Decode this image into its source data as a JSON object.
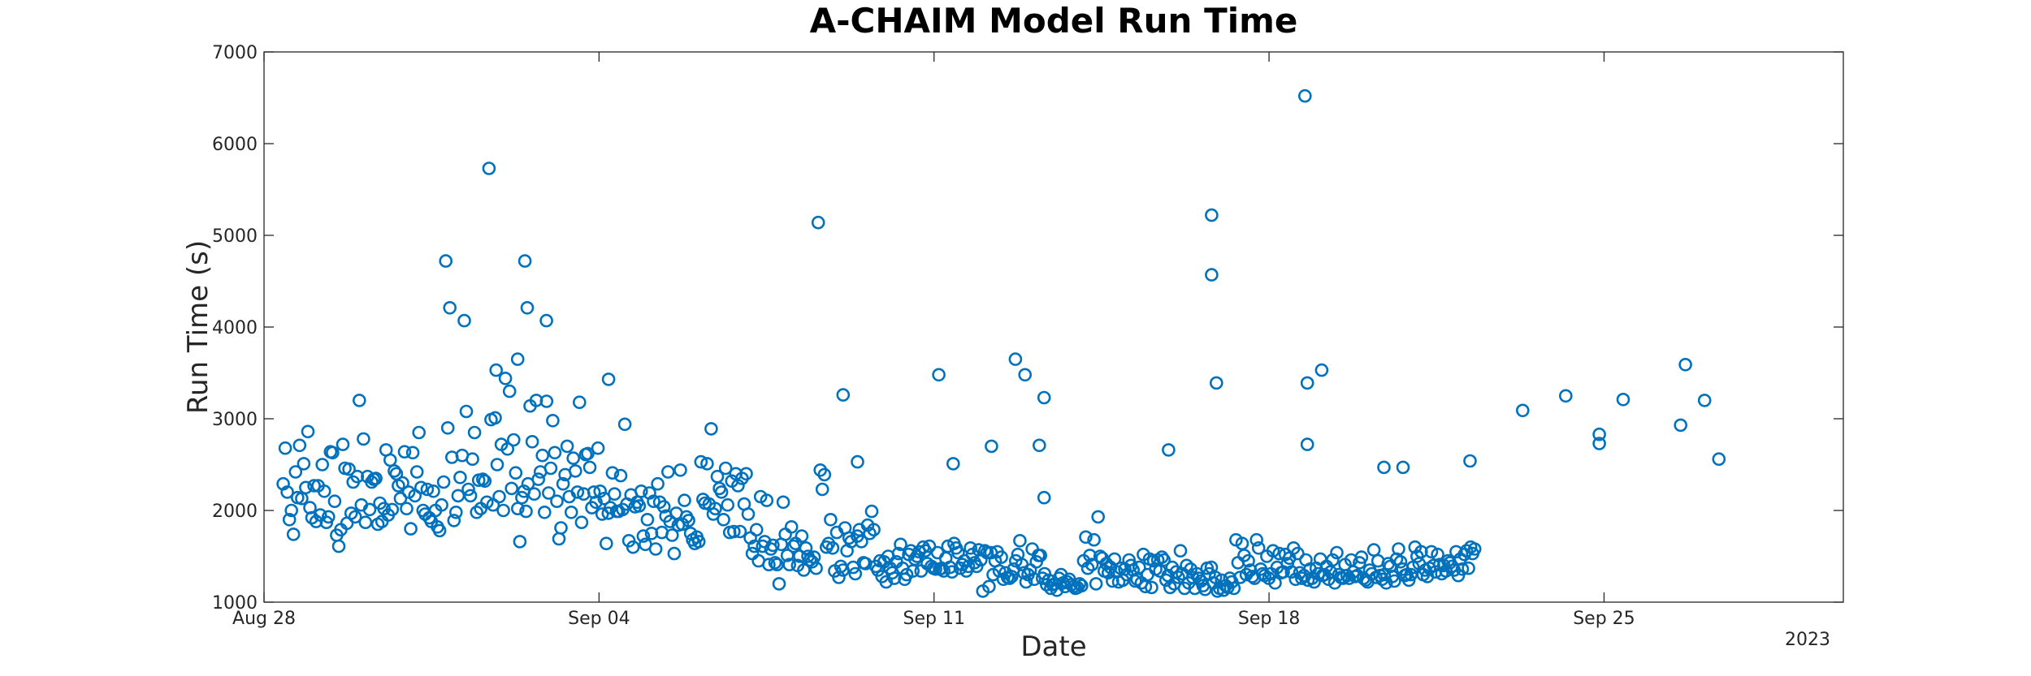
{
  "chart_data": {
    "type": "scatter",
    "title": "A-CHAIM Model Run Time",
    "xlabel": "Date",
    "ylabel": "Run Time (s)",
    "year_label": "2023",
    "ylim": [
      1000,
      7000
    ],
    "yticks": [
      1000,
      2000,
      3000,
      4000,
      5000,
      6000,
      7000
    ],
    "xlim_days": [
      0,
      33
    ],
    "xticks": [
      {
        "day": 0,
        "label": "Aug 28"
      },
      {
        "day": 7,
        "label": "Sep 04"
      },
      {
        "day": 14,
        "label": "Sep 11"
      },
      {
        "day": 21,
        "label": "Sep 18"
      },
      {
        "day": 28,
        "label": "Sep 25"
      }
    ],
    "marker_color": "#0072BD",
    "x_day_offset": 0.4,
    "x_day_step": 0.043,
    "series": [
      {
        "name": "Run Time",
        "y": [
          2290,
          2680,
          2200,
          1900,
          2000,
          1740,
          2420,
          2140,
          2710,
          2130,
          2510,
          2250,
          2860,
          2030,
          1920,
          2270,
          1880,
          2270,
          1950,
          2500,
          2210,
          1870,
          1930,
          2640,
          2630,
          2100,
          1730,
          1610,
          1790,
          2720,
          2460,
          1860,
          2450,
          1970,
          2310,
          1930,
          2370,
          3200,
          2060,
          2780,
          1870,
          2370,
          2010,
          2310,
          2340,
          2350,
          1850,
          2080,
          1880,
          2020,
          2660,
          1950,
          2550,
          2010,
          2430,
          2400,
          2270,
          2130,
          2300,
          2640,
          2020,
          2200,
          1800,
          2630,
          2160,
          2420,
          2850,
          2250,
          2000,
          1960,
          2230,
          1920,
          1880,
          2210,
          2000,
          1820,
          1780,
          2060,
          2310,
          4720,
          2900,
          4210,
          2580,
          1890,
          1980,
          2160,
          2360,
          2600,
          4070,
          3080,
          2230,
          2160,
          2560,
          2850,
          1980,
          2330,
          2020,
          2340,
          2320,
          2090,
          5730,
          2990,
          2060,
          3010,
          2500,
          2150,
          2720,
          2000,
          3440,
          2670,
          3300,
          2240,
          2770,
          2410,
          2020,
          1660,
          2140,
          2210,
          1990,
          2290,
          3140,
          2750,
          2180,
          3200,
          2340,
          2420,
          2600,
          1980,
          3190,
          2190,
          2460,
          2980,
          2630,
          2100,
          1690,
          1810,
          2290,
          2390,
          2700,
          2150,
          1980,
          2570,
          2430,
          2200,
          3180,
          1870,
          2180,
          2610,
          2620,
          2470,
          2030,
          2200,
          2090,
          2680,
          2210,
          1960,
          2130,
          1640,
          1970,
          2030,
          2410,
          2180,
          1990,
          1990,
          2380,
          2010,
          2940,
          2070,
          1670,
          2170,
          1600,
          2040,
          2090,
          2050,
          2210,
          1720,
          1630,
          1900,
          2190,
          1750,
          2100,
          1580,
          2290,
          2090,
          1760,
          2040,
          1940,
          2420,
          1880,
          1730,
          1530,
          1970,
          1840,
          2440,
          1850,
          2110,
          1930,
          1890,
          1750,
          1680,
          1640,
          1710,
          1660,
          2530,
          2120,
          2080,
          2510,
          2070,
          2890,
          1960,
          2020,
          2370,
          2240,
          2200,
          1900,
          2460,
          2060,
          1760,
          2320,
          1770,
          2400,
          2270,
          1770,
          2350,
          2070,
          2400,
          1960,
          1700,
          1530,
          1610,
          1790,
          1450,
          2150,
          1610,
          1660,
          2110,
          1410,
          1580,
          1620,
          1430,
          1410,
          1200,
          1630,
          2090,
          1740,
          1510,
          1410,
          1820,
          1610,
          1640,
          1400,
          1500,
          1720,
          1350,
          1590,
          1500,
          1460,
          1440,
          1490,
          1370,
          5140,
          2440,
          2230,
          2390,
          1600,
          1640,
          1900,
          1590,
          1340,
          1760,
          1270,
          1390,
          1350,
          1810,
          1560,
          1700,
          1660,
          1380,
          1310,
          1720,
          1790,
          1660,
          1430,
          1420,
          1840,
          1750,
          1990,
          1790,
          1390,
          1350,
          1450,
          1280,
          1440,
          1220,
          1500,
          1370,
          1320,
          1260,
          1440,
          1530,
          1630,
          1370,
          1250,
          1300,
          1520,
          1560,
          1340,
          1470,
          1500,
          1550,
          1340,
          1600,
          1560,
          1420,
          1610,
          1390,
          1370,
          1360,
          1540,
          1360,
          1370,
          1340,
          1480,
          1610,
          1380,
          1330,
          1640,
          1590,
          1540,
          1370,
          1410,
          1450,
          1340,
          1390,
          1590,
          1520,
          1430,
          1390,
          1570,
          1460,
          1120,
          1560,
          1540,
          1170,
          1540,
          1300,
          1450,
          1550,
          1340,
          1490,
          1250,
          1320,
          1270,
          1260,
          1280,
          1360,
          1450,
          1520,
          1670,
          1410,
          1320,
          1220,
          1300,
          1350,
          1580,
          1250,
          1440,
          1510,
          1510,
          1260,
          1310,
          1190,
          1240,
          1150,
          1190,
          1200,
          1130,
          1260,
          1300,
          1210,
          1170,
          1220,
          1250,
          1190,
          1170,
          1150,
          1160,
          1200,
          1180,
          1450,
          1710,
          1370,
          1510,
          1410,
          1680,
          1200,
          1930,
          1500,
          1480,
          1340,
          1420,
          1320,
          1380,
          1230,
          1470,
          1330,
          1220,
          1370,
          1240,
          1360,
          1300,
          1460,
          1400,
          1350,
          1230,
          1250,
          1380,
          1210,
          1520,
          1170,
          1300,
          1470,
          1160,
          1450,
          1360,
          1460,
          1340,
          1490,
          1460,
          1240,
          1290,
          1160,
          1380,
          1200,
          1330,
          1270,
          1560,
          1310,
          1150,
          1400,
          1210,
          1360,
          1270,
          1150,
          1310,
          1260,
          1230,
          1180,
          1140,
          1370,
          1310,
          1380,
          1210,
          1270,
          1120,
          1150,
          1240,
          1130,
          1180,
          1160,
          1260,
          1220,
          1150,
          1680,
          1430,
          1270,
          1640,
          1510,
          1300,
          1450,
          1350,
          1280,
          1260,
          1680,
          1590,
          1360,
          1310,
          1290,
          1500,
          1260,
          1310,
          1560,
          1210,
          1380,
          1530,
          1320,
          1330,
          1520,
          1420,
          1480,
          1330,
          1590,
          1250,
          1530,
          1320,
          1260,
          1290,
          1460,
          1240,
          1360,
          1260,
          1220,
          1370,
          1310,
          1470,
          1290,
          1300,
          1390,
          1250,
          1330,
          1460,
          1210,
          1540,
          1300,
          1270,
          1260,
          1410,
          1290,
          1260,
          1460,
          1330,
          1280,
          1290,
          1430,
          1490,
          1260,
          1240,
          1220,
          1350,
          1310,
          1570,
          1270,
          1450,
          1290,
          1250,
          1300,
          1210,
          1420,
          1390,
          1280,
          1230,
          1470,
          1580,
          1440,
          1360,
          1290,
          1300,
          1240,
          1300,
          1380,
          1600,
          1500,
          1420,
          1550,
          1300,
          1350,
          1280,
          1370,
          1550,
          1400,
          1330,
          1520,
          1410,
          1310,
          1400,
          1340,
          1450,
          1430,
          1390,
          1350,
          1550,
          1290,
          1470,
          1360,
          1520,
          1560,
          1370,
          1600,
          1530,
          1580
        ],
        "outliers": [
          {
            "day": 5.45,
            "y": 4720
          },
          {
            "day": 5.5,
            "y": 4210
          },
          {
            "day": 5.9,
            "y": 4070
          },
          {
            "day": 4.85,
            "y": 3530
          },
          {
            "day": 5.3,
            "y": 3650
          },
          {
            "day": 7.2,
            "y": 3430
          },
          {
            "day": 12.1,
            "y": 3260
          },
          {
            "day": 14.1,
            "y": 3480
          },
          {
            "day": 15.7,
            "y": 3650
          },
          {
            "day": 15.9,
            "y": 3480
          },
          {
            "day": 16.2,
            "y": 2710
          },
          {
            "day": 16.3,
            "y": 3230
          },
          {
            "day": 18.9,
            "y": 2660
          },
          {
            "day": 19.8,
            "y": 5220
          },
          {
            "day": 19.8,
            "y": 4570
          },
          {
            "day": 19.9,
            "y": 3390
          },
          {
            "day": 21.75,
            "y": 6520
          },
          {
            "day": 21.8,
            "y": 3390
          },
          {
            "day": 21.8,
            "y": 2720
          },
          {
            "day": 22.1,
            "y": 3530
          },
          {
            "day": 26.3,
            "y": 3090
          },
          {
            "day": 27.2,
            "y": 3250
          },
          {
            "day": 28.4,
            "y": 3210
          },
          {
            "day": 29.7,
            "y": 3590
          },
          {
            "day": 30.1,
            "y": 3200
          },
          {
            "day": 29.6,
            "y": 2930
          },
          {
            "day": 30.4,
            "y": 2560
          },
          {
            "day": 27.9,
            "y": 2830
          },
          {
            "day": 27.9,
            "y": 2730
          },
          {
            "day": 25.2,
            "y": 2540
          },
          {
            "day": 23.8,
            "y": 2470
          },
          {
            "day": 23.4,
            "y": 2470
          },
          {
            "day": 16.3,
            "y": 2140
          },
          {
            "day": 12.4,
            "y": 2530
          },
          {
            "day": 14.4,
            "y": 2510
          },
          {
            "day": 15.2,
            "y": 2700
          }
        ]
      }
    ]
  }
}
